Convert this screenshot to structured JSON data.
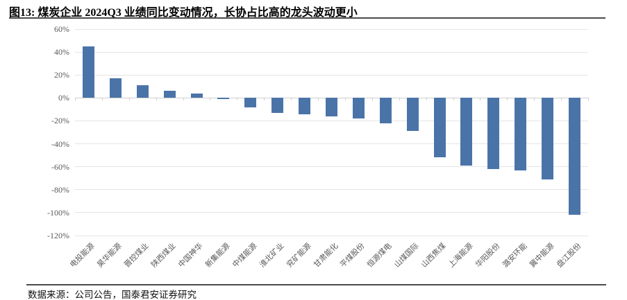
{
  "figure": {
    "title": "图13: 煤炭企业 2024Q3 业绩同比变动情况，长协占比高的龙头波动更小",
    "source": "数据来源：公司公告，国泰君安证券研究"
  },
  "chart_data": {
    "type": "bar",
    "title": "图13: 煤炭企业 2024Q3 业绩同比变动情况，长协占比高的龙头波动更小",
    "categories": [
      "电投能源",
      "昊华能源",
      "晋控煤业",
      "陕西煤业",
      "中国神华",
      "新集能源",
      "中煤能源",
      "淮北矿业",
      "兖矿能源",
      "甘肃能化",
      "平煤股份",
      "恒源煤电",
      "山煤国际",
      "山西焦煤",
      "上海能源",
      "华阳股份",
      "潞安环能",
      "冀中能源",
      "盘江股份"
    ],
    "values": [
      45,
      17,
      11,
      6,
      4,
      -1,
      -8,
      -13,
      -14,
      -16,
      -18,
      -22,
      -29,
      -52,
      -59,
      -62,
      -63,
      -71,
      -102
    ],
    "unit": "%",
    "xlabel": "",
    "ylabel": "",
    "ylim": [
      -120,
      60
    ],
    "ytick_step": 20,
    "ytick_labels": [
      "60%",
      "40%",
      "20%",
      "0%",
      "-20%",
      "-40%",
      "-60%",
      "-80%",
      "-100%",
      "-120%"
    ],
    "grid": true,
    "legend": null,
    "bar_color": "#4a74a8",
    "gridline_color": "#e4e4e4",
    "axis_line_color": "#cfcfcf",
    "label_color": "#5a5a5a"
  }
}
